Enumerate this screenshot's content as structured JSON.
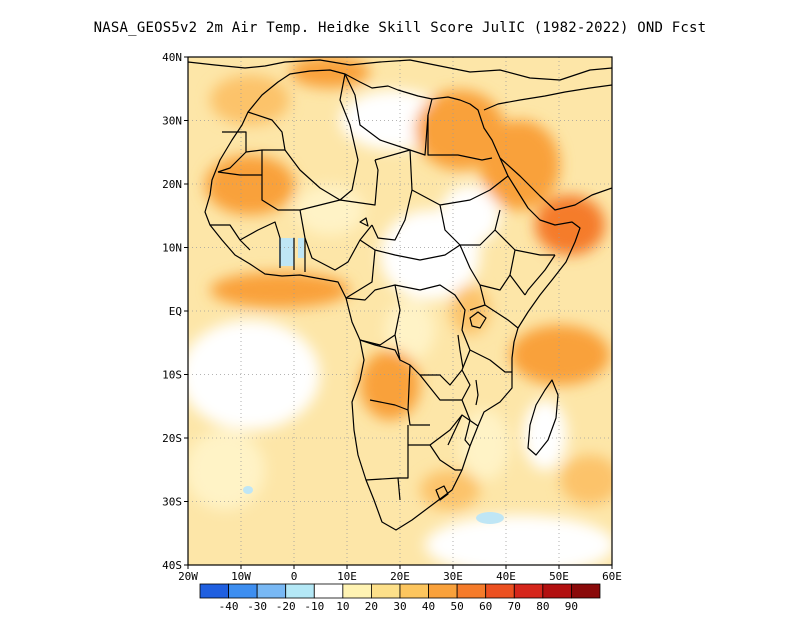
{
  "title": "NASA_GEOS5v2  2m Air Temp. Heidke Skill Score JulIC (1982-2022) OND Fcst",
  "lat_labels": [
    "40N",
    "30N",
    "20N",
    "10N",
    "EQ",
    "10S",
    "20S",
    "30S",
    "40S"
  ],
  "lon_labels": [
    "20W",
    "10W",
    "0",
    "10E",
    "20E",
    "30E",
    "40E",
    "50E",
    "60E"
  ],
  "colorbar": {
    "labels": [
      "-40",
      "-30",
      "-20",
      "-10",
      "10",
      "20",
      "30",
      "40",
      "50",
      "60",
      "70",
      "80",
      "90"
    ],
    "colors": [
      "#1f5fe0",
      "#3d8ef0",
      "#78b8f4",
      "#b4e8f6",
      "#ffffff",
      "#fff3b3",
      "#fde08a",
      "#fcc55e",
      "#f9a13b",
      "#f57b2a",
      "#ec5020",
      "#d5261b",
      "#b21010",
      "#8a0a0a"
    ]
  },
  "field_colors": {
    "ocean_base": "#fde6a8",
    "light": "#fff3c6",
    "mid": "#fcc36a",
    "strong": "#f9a13b",
    "hot": "#f57b2a",
    "white": "#ffffff",
    "blue": "#bfe6f5",
    "border": "#000000",
    "grid": "#9c9c9c"
  }
}
